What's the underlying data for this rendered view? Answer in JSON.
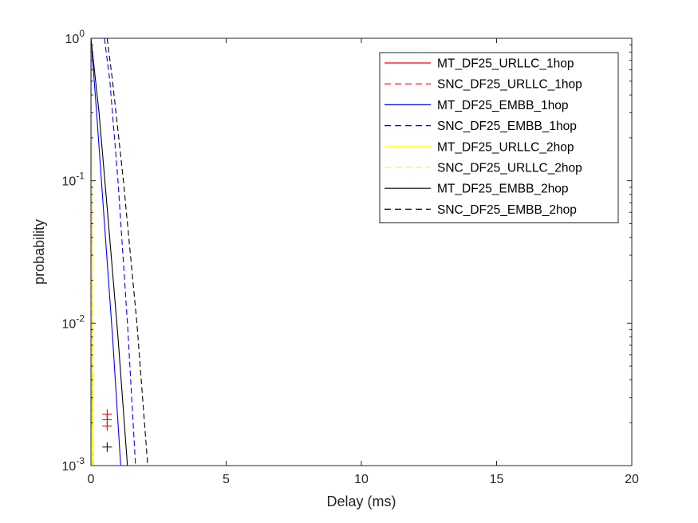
{
  "chart_data": {
    "type": "line",
    "title": "",
    "xlabel": "Delay (ms)",
    "ylabel": "probability",
    "xlim": [
      0,
      20
    ],
    "ylim": [
      0.001,
      1
    ],
    "yscale": "log",
    "grid": false,
    "legend_position": "top-right",
    "x_ticks": [
      0,
      5,
      10,
      15,
      20
    ],
    "x_tick_labels": [
      "0",
      "5",
      "10",
      "15",
      "20"
    ],
    "y_ticks": [
      1,
      0.1,
      0.01,
      0.001
    ],
    "y_tick_labels": [
      {
        "base": "10",
        "exp": "0"
      },
      {
        "base": "10",
        "exp": "-1"
      },
      {
        "base": "10",
        "exp": "-2"
      },
      {
        "base": "10",
        "exp": "-3"
      }
    ],
    "series": [
      {
        "name": "MT_DF25_URLLC_1hop",
        "color": "#ff0000",
        "dash": "solid",
        "x": [
          0.001,
          0.01,
          0.02,
          0.03,
          0.05
        ],
        "y": [
          1,
          0.2,
          0.03,
          0.005,
          0.001
        ]
      },
      {
        "name": "SNC_DF25_URLLC_1hop",
        "color": "#ff0000",
        "dash": "dashed",
        "x": [
          0.001,
          0.02,
          0.04,
          0.06,
          0.08
        ],
        "y": [
          1,
          0.2,
          0.03,
          0.005,
          0.001
        ]
      },
      {
        "name": "MT_DF25_EMBB_1hop",
        "color": "#0000ff",
        "dash": "solid",
        "x": [
          0,
          0.2,
          0.5,
          0.8,
          1.1
        ],
        "y": [
          1,
          0.32,
          0.05,
          0.008,
          0.001
        ]
      },
      {
        "name": "SNC_DF25_EMBB_1hop",
        "color": "#0000ff",
        "dash": "dashed",
        "x": [
          0.5,
          0.7,
          1.0,
          1.35,
          1.65
        ],
        "y": [
          1,
          0.5,
          0.1,
          0.01,
          0.001
        ]
      },
      {
        "name": "MT_DF25_URLLC_2hop",
        "color": "#ffff00",
        "dash": "solid",
        "x": [
          0.001,
          0.01,
          0.02,
          0.03,
          0.05
        ],
        "y": [
          1,
          0.2,
          0.03,
          0.005,
          0.001
        ]
      },
      {
        "name": "SNC_DF25_URLLC_2hop",
        "color": "#ffff00",
        "dash": "dashed",
        "x": [
          0.001,
          0.02,
          0.04,
          0.06,
          0.08
        ],
        "y": [
          1,
          0.2,
          0.03,
          0.005,
          0.001
        ]
      },
      {
        "name": "MT_DF25_EMBB_2hop",
        "color": "#000000",
        "dash": "solid",
        "x": [
          0,
          0.3,
          0.65,
          1.0,
          1.35
        ],
        "y": [
          1,
          0.3,
          0.05,
          0.008,
          0.001
        ]
      },
      {
        "name": "SNC_DF25_EMBB_2hop",
        "color": "#000000",
        "dash": "dashed",
        "x": [
          0.6,
          0.8,
          1.2,
          1.7,
          2.1
        ],
        "y": [
          1,
          0.5,
          0.1,
          0.01,
          0.001
        ]
      }
    ],
    "markers": [
      {
        "series": "MT_DF25_URLLC_1hop",
        "symbol": "+",
        "color": "#cc0000",
        "x": 0.6,
        "y": 0.0023
      },
      {
        "series": "MT_DF25_URLLC_1hop",
        "symbol": "+",
        "color": "#cc0000",
        "x": 0.6,
        "y": 0.0021
      },
      {
        "series": "MT_DF25_URLLC_1hop",
        "symbol": "+",
        "color": "#cc0000",
        "x": 0.6,
        "y": 0.0019
      },
      {
        "series": "MT_DF25_EMBB_2hop",
        "symbol": "+",
        "color": "#000000",
        "x": 0.6,
        "y": 0.00135
      }
    ]
  }
}
